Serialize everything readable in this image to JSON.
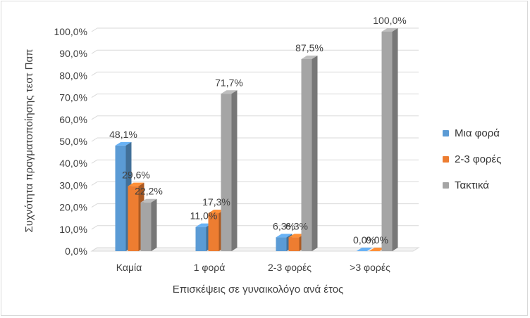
{
  "chart_data": {
    "type": "bar",
    "categories": [
      "Καμία",
      "1 φορά",
      "2-3 φορές",
      ">3 φορές"
    ],
    "series": [
      {
        "name": "Μια φορά",
        "values": [
          48.1,
          11.0,
          6.3,
          0.0
        ],
        "labels": [
          "48,1%",
          "11,0%",
          "6,3%",
          "0,0%"
        ],
        "color": "#5b9bd5"
      },
      {
        "name": "2-3 φορές",
        "values": [
          29.6,
          17.3,
          6.3,
          0.0
        ],
        "labels": [
          "29,6%",
          "17,3%",
          "6,3%",
          "0,0%"
        ],
        "color": "#ed7d31"
      },
      {
        "name": "Τακτικά",
        "values": [
          22.2,
          71.7,
          87.5,
          100.0
        ],
        "labels": [
          "22,2%",
          "71,7%",
          "87,5%",
          "100,0%"
        ],
        "color": "#a5a5a5"
      }
    ],
    "yticks": [
      "0,0%",
      "10,0%",
      "20,0%",
      "30,0%",
      "40,0%",
      "50,0%",
      "60,0%",
      "70,0%",
      "80,0%",
      "90,0%",
      "100,0%"
    ],
    "ylim": [
      0,
      100
    ],
    "xlabel": "Επισκέψεις σε γυναικολόγο ανά έτος",
    "ylabel": "Συχνότητα πραγματοποίησης τεστ Παπ",
    "grid": true,
    "legend_position": "right",
    "style": "3d-clustered-column"
  }
}
